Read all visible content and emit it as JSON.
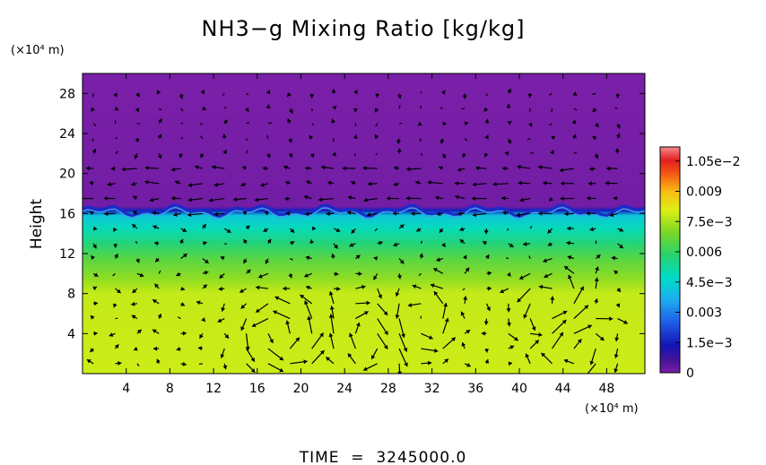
{
  "chart_data": {
    "type": "heatmap",
    "title": "NH3−g Mixing Ratio [kg/kg]",
    "ylabel": "Height",
    "y_unit": "(×10⁴ m)",
    "x_unit": "(×10⁴ m)",
    "xlim": [
      0,
      51.5
    ],
    "ylim": [
      0,
      30
    ],
    "x_ticks": [
      4,
      8,
      12,
      16,
      20,
      24,
      28,
      32,
      36,
      40,
      44,
      48
    ],
    "y_ticks": [
      4,
      8,
      12,
      16,
      20,
      24,
      28
    ],
    "colorbar": {
      "min": 0,
      "max": 0.0112,
      "tick_values": [
        0,
        0.0015,
        0.003,
        0.0045,
        0.006,
        0.0075,
        0.009,
        0.0105
      ],
      "tick_labels": [
        "0",
        "1.5e−3",
        "0.003",
        "4.5e−3",
        "0.006",
        "7.5e−3",
        "0.009",
        "1.05e−2"
      ]
    },
    "field_profile": [
      {
        "height": 0,
        "value": 0.0079
      },
      {
        "height": 8,
        "value": 0.0078
      },
      {
        "height": 9.5,
        "value": 0.0072
      },
      {
        "height": 11.5,
        "value": 0.0065
      },
      {
        "height": 13,
        "value": 0.0057
      },
      {
        "height": 14.5,
        "value": 0.0049
      },
      {
        "height": 15.8,
        "value": 0.0042
      },
      {
        "height": 16.3,
        "value": 0.0015
      },
      {
        "height": 16.7,
        "value": 0.0001
      },
      {
        "height": 30,
        "value": 0
      }
    ],
    "vectors": "wind velocity arrows overlaid on the field"
  },
  "footer": {
    "time_label": "TIME  =  3245000.0"
  },
  "colors": {
    "background": "#ffffff",
    "upper_layer": "#7a1fa8",
    "axis": "#000000",
    "arrows": "#000000"
  }
}
